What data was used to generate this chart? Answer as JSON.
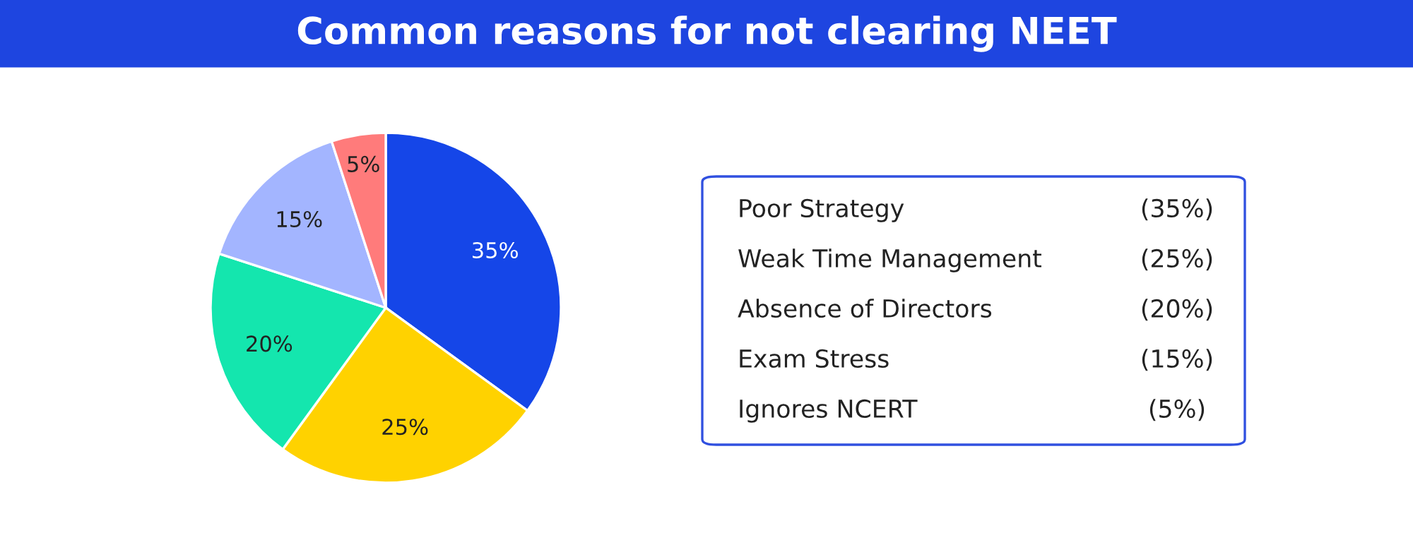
{
  "chart_data": {
    "type": "pie",
    "title": "Common reasons for not clearing NEET",
    "categories": [
      null,
      null,
      null,
      null,
      null
    ],
    "values": [
      35,
      25,
      20,
      15,
      5
    ],
    "value_labels": [
      "35%",
      "25%",
      "20%",
      "15%",
      "5%"
    ],
    "colors": [
      "#1546e8",
      "#ffd200",
      "#14e6ae",
      "#a3b5ff",
      "#ff7b7b"
    ],
    "annotations": [
      "Poor Strategy",
      "(35%)",
      "Weak Time Management",
      "(25%)",
      "Absence of Directors",
      "(20%)",
      "Exam Stress",
      "(15%)",
      "Ignores NCERT",
      "(5%)"
    ]
  }
}
